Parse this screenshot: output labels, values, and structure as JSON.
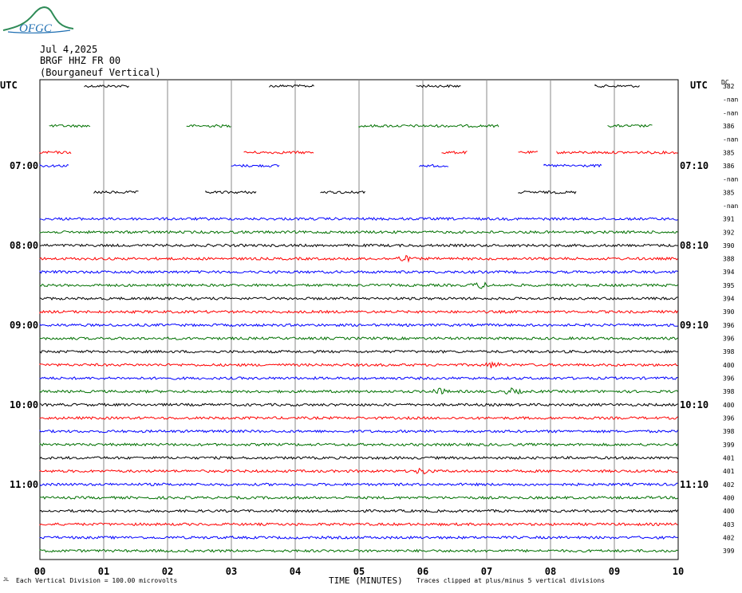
{
  "header": {
    "logo_text": "OFGC",
    "date": "Jul 4,2025",
    "station": "BRGF HHZ FR 00",
    "location": "(Bourganeuf Vertical)"
  },
  "chart_data": {
    "type": "line",
    "title": "BRGF HHZ FR 00 (Bourganeuf Vertical)",
    "xlabel": "TIME (MINUTES)",
    "xlim": [
      0,
      10
    ],
    "x_ticks": [
      "00",
      "01",
      "02",
      "03",
      "04",
      "05",
      "06",
      "07",
      "08",
      "09",
      "10"
    ],
    "left_axis_title": "UTC",
    "right_axis_title": "UTC",
    "right_header": "DC",
    "left_time_labels": [
      {
        "label": "07:00",
        "row": 6
      },
      {
        "label": "08:00",
        "row": 12
      },
      {
        "label": "09:00",
        "row": 18
      },
      {
        "label": "10:00",
        "row": 24
      },
      {
        "label": "11:00",
        "row": 30
      }
    ],
    "right_time_labels": [
      {
        "label": "07:10",
        "row": 6
      },
      {
        "label": "08:10",
        "row": 12
      },
      {
        "label": "09:10",
        "row": 18
      },
      {
        "label": "10:10",
        "row": 24
      },
      {
        "label": "11:10",
        "row": 30
      }
    ],
    "trace_colors": [
      "#000000",
      "#ff0000",
      "#0000ff",
      "#007000"
    ],
    "rows": [
      {
        "dc": "382",
        "color": "#000000",
        "data_segments": [
          [
            0.7,
            1.4
          ],
          [
            3.6,
            4.3
          ],
          [
            5.9,
            6.6
          ],
          [
            8.7,
            9.4
          ]
        ]
      },
      {
        "dc": "-nan",
        "color": null,
        "data_segments": []
      },
      {
        "dc": "-nan",
        "color": null,
        "data_segments": []
      },
      {
        "dc": "386",
        "color": "#007000",
        "data_segments": [
          [
            0.15,
            0.8
          ],
          [
            2.3,
            3.0
          ],
          [
            5.0,
            6.4
          ],
          [
            6.4,
            7.2
          ],
          [
            8.9,
            9.6
          ]
        ]
      },
      {
        "dc": "-nan",
        "color": null,
        "data_segments": []
      },
      {
        "dc": "385",
        "color": "#ff0000",
        "data_segments": [
          [
            0.0,
            0.5
          ],
          [
            3.2,
            4.3
          ],
          [
            6.3,
            6.7
          ],
          [
            7.5,
            7.8
          ],
          [
            8.1,
            10.0
          ]
        ]
      },
      {
        "dc": "386",
        "color": "#0000ff",
        "data_segments": [
          [
            0.0,
            0.45
          ],
          [
            3.0,
            3.75
          ],
          [
            5.95,
            6.4
          ],
          [
            7.9,
            8.8
          ]
        ]
      },
      {
        "dc": "-nan",
        "color": null,
        "data_segments": []
      },
      {
        "dc": "385",
        "color": "#000000",
        "data_segments": [
          [
            0.85,
            1.55
          ],
          [
            2.6,
            3.4
          ],
          [
            4.4,
            5.1
          ],
          [
            7.5,
            8.4
          ]
        ]
      },
      {
        "dc": "-nan",
        "color": null,
        "data_segments": []
      },
      {
        "dc": "391",
        "color": "#0000ff",
        "data_segments": [
          [
            0.0,
            10.0
          ]
        ]
      },
      {
        "dc": "392",
        "color": "#007000",
        "data_segments": [
          [
            0.0,
            10.0
          ]
        ]
      },
      {
        "dc": "390",
        "color": "#000000",
        "data_segments": [
          [
            0.0,
            10.0
          ]
        ]
      },
      {
        "dc": "388",
        "color": "#ff0000",
        "data_segments": [
          [
            0.0,
            10.0
          ]
        ]
      },
      {
        "dc": "394",
        "color": "#0000ff",
        "data_segments": [
          [
            0.0,
            10.0
          ]
        ]
      },
      {
        "dc": "395",
        "color": "#007000",
        "data_segments": [
          [
            0.0,
            10.0
          ]
        ]
      },
      {
        "dc": "394",
        "color": "#000000",
        "data_segments": [
          [
            0.0,
            10.0
          ]
        ]
      },
      {
        "dc": "390",
        "color": "#ff0000",
        "data_segments": [
          [
            0.0,
            10.0
          ]
        ]
      },
      {
        "dc": "396",
        "color": "#0000ff",
        "data_segments": [
          [
            0.0,
            10.0
          ]
        ]
      },
      {
        "dc": "396",
        "color": "#007000",
        "data_segments": [
          [
            0.0,
            10.0
          ]
        ]
      },
      {
        "dc": "398",
        "color": "#000000",
        "data_segments": [
          [
            0.0,
            10.0
          ]
        ]
      },
      {
        "dc": "400",
        "color": "#ff0000",
        "data_segments": [
          [
            0.0,
            10.0
          ]
        ]
      },
      {
        "dc": "396",
        "color": "#0000ff",
        "data_segments": [
          [
            0.0,
            10.0
          ]
        ]
      },
      {
        "dc": "398",
        "color": "#007000",
        "data_segments": [
          [
            0.0,
            10.0
          ]
        ]
      },
      {
        "dc": "400",
        "color": "#000000",
        "data_segments": [
          [
            0.0,
            10.0
          ]
        ]
      },
      {
        "dc": "396",
        "color": "#ff0000",
        "data_segments": [
          [
            0.0,
            10.0
          ]
        ]
      },
      {
        "dc": "398",
        "color": "#0000ff",
        "data_segments": [
          [
            0.0,
            10.0
          ]
        ]
      },
      {
        "dc": "399",
        "color": "#007000",
        "data_segments": [
          [
            0.0,
            10.0
          ]
        ]
      },
      {
        "dc": "401",
        "color": "#000000",
        "data_segments": [
          [
            0.0,
            10.0
          ]
        ]
      },
      {
        "dc": "401",
        "color": "#ff0000",
        "data_segments": [
          [
            0.0,
            10.0
          ]
        ]
      },
      {
        "dc": "402",
        "color": "#0000ff",
        "data_segments": [
          [
            0.0,
            10.0
          ]
        ]
      },
      {
        "dc": "400",
        "color": "#007000",
        "data_segments": [
          [
            0.0,
            10.0
          ]
        ]
      },
      {
        "dc": "400",
        "color": "#000000",
        "data_segments": [
          [
            0.0,
            10.0
          ]
        ]
      },
      {
        "dc": "403",
        "color": "#ff0000",
        "data_segments": [
          [
            0.0,
            10.0
          ]
        ]
      },
      {
        "dc": "402",
        "color": "#0000ff",
        "data_segments": [
          [
            0.0,
            10.0
          ]
        ]
      },
      {
        "dc": "399",
        "color": "#007000",
        "data_segments": [
          [
            0.0,
            10.0
          ]
        ]
      }
    ],
    "events": [
      {
        "row": 13,
        "minute": 5.7
      },
      {
        "row": 15,
        "minute": 6.9
      },
      {
        "row": 21,
        "minute": 7.1
      },
      {
        "row": 23,
        "minute": 6.25
      },
      {
        "row": 23,
        "minute": 7.4
      },
      {
        "row": 29,
        "minute": 6.0
      }
    ],
    "footer_scale": "Each Vertical Division =  100.00 microvolts",
    "footer_clip": "Traces clipped at plus/minus 5 vertical divisions",
    "footer_corner": "JL"
  }
}
